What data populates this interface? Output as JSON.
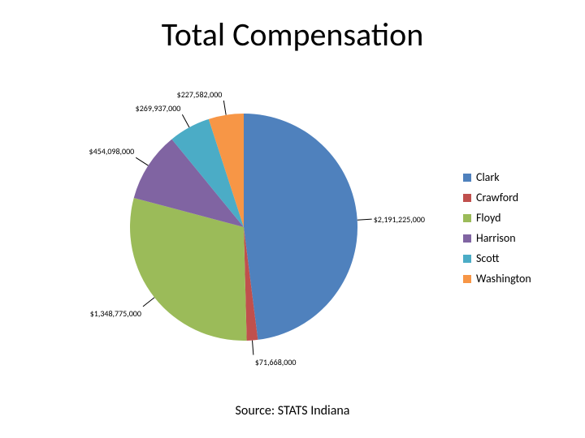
{
  "title": "Total Compensation",
  "source": "Source:  STATS Indiana",
  "chart": {
    "type": "pie",
    "background_color": "#ffffff",
    "radius": 140,
    "slices": [
      {
        "name": "Clark",
        "value": 2191225000,
        "label": "$2,191,225,000",
        "color": "#4f81bd"
      },
      {
        "name": "Crawford",
        "value": 71668000,
        "label": "$71,668,000",
        "color": "#c0504d"
      },
      {
        "name": "Floyd",
        "value": 1348775000,
        "label": "$1,348,775,000",
        "color": "#9bbb59"
      },
      {
        "name": "Harrison",
        "value": 454098000,
        "label": "$454,098,000",
        "color": "#8064a2"
      },
      {
        "name": "Scott",
        "value": 269937000,
        "label": "$269,937,000",
        "color": "#4bacc6"
      },
      {
        "name": "Washington",
        "value": 227582000,
        "label": "$227,582,000",
        "color": "#f79646"
      }
    ],
    "label_fontsize": 10,
    "label_color": "#000000",
    "start_angle_deg": -90
  },
  "legend": {
    "fontsize": 14,
    "items": [
      {
        "label": "Clark",
        "color": "#4f81bd"
      },
      {
        "label": "Crawford",
        "color": "#c0504d"
      },
      {
        "label": "Floyd",
        "color": "#9bbb59"
      },
      {
        "label": "Harrison",
        "color": "#8064a2"
      },
      {
        "label": "Scott",
        "color": "#4bacc6"
      },
      {
        "label": "Washington",
        "color": "#f79646"
      }
    ]
  }
}
